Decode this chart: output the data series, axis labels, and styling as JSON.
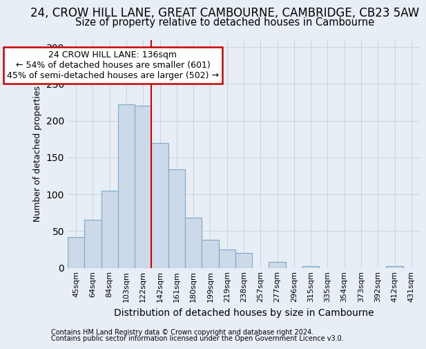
{
  "title1": "24, CROW HILL LANE, GREAT CAMBOURNE, CAMBRIDGE, CB23 5AW",
  "title2": "Size of property relative to detached houses in Cambourne",
  "xlabel": "Distribution of detached houses by size in Cambourne",
  "ylabel": "Number of detached properties",
  "categories": [
    "45sqm",
    "64sqm",
    "84sqm",
    "103sqm",
    "122sqm",
    "142sqm",
    "161sqm",
    "180sqm",
    "199sqm",
    "219sqm",
    "238sqm",
    "257sqm",
    "277sqm",
    "296sqm",
    "315sqm",
    "335sqm",
    "354sqm",
    "373sqm",
    "392sqm",
    "412sqm",
    "431sqm"
  ],
  "values": [
    42,
    65,
    105,
    222,
    220,
    170,
    134,
    68,
    38,
    25,
    20,
    0,
    8,
    0,
    2,
    0,
    0,
    0,
    0,
    2,
    0
  ],
  "bar_color": "#ccd9e8",
  "bar_edge_color": "#7aa8cc",
  "vline_index": 4.5,
  "annotation_line1": "24 CROW HILL LANE: 136sqm",
  "annotation_line2": "← 54% of detached houses are smaller (601)",
  "annotation_line3": "45% of semi-detached houses are larger (502) →",
  "annotation_box_color": "#ffffff",
  "annotation_box_edge": "#cc0000",
  "vline_color": "#cc0000",
  "grid_color": "#c8d4e0",
  "bg_color": "#e8eef5",
  "footer1": "Contains HM Land Registry data © Crown copyright and database right 2024.",
  "footer2": "Contains public sector information licensed under the Open Government Licence v3.0.",
  "ylim": [
    0,
    310
  ],
  "title1_fontsize": 12,
  "title2_fontsize": 10.5,
  "ylabel_fontsize": 9,
  "xlabel_fontsize": 10,
  "tick_fontsize": 8,
  "ann_fontsize": 9,
  "footer_fontsize": 7
}
